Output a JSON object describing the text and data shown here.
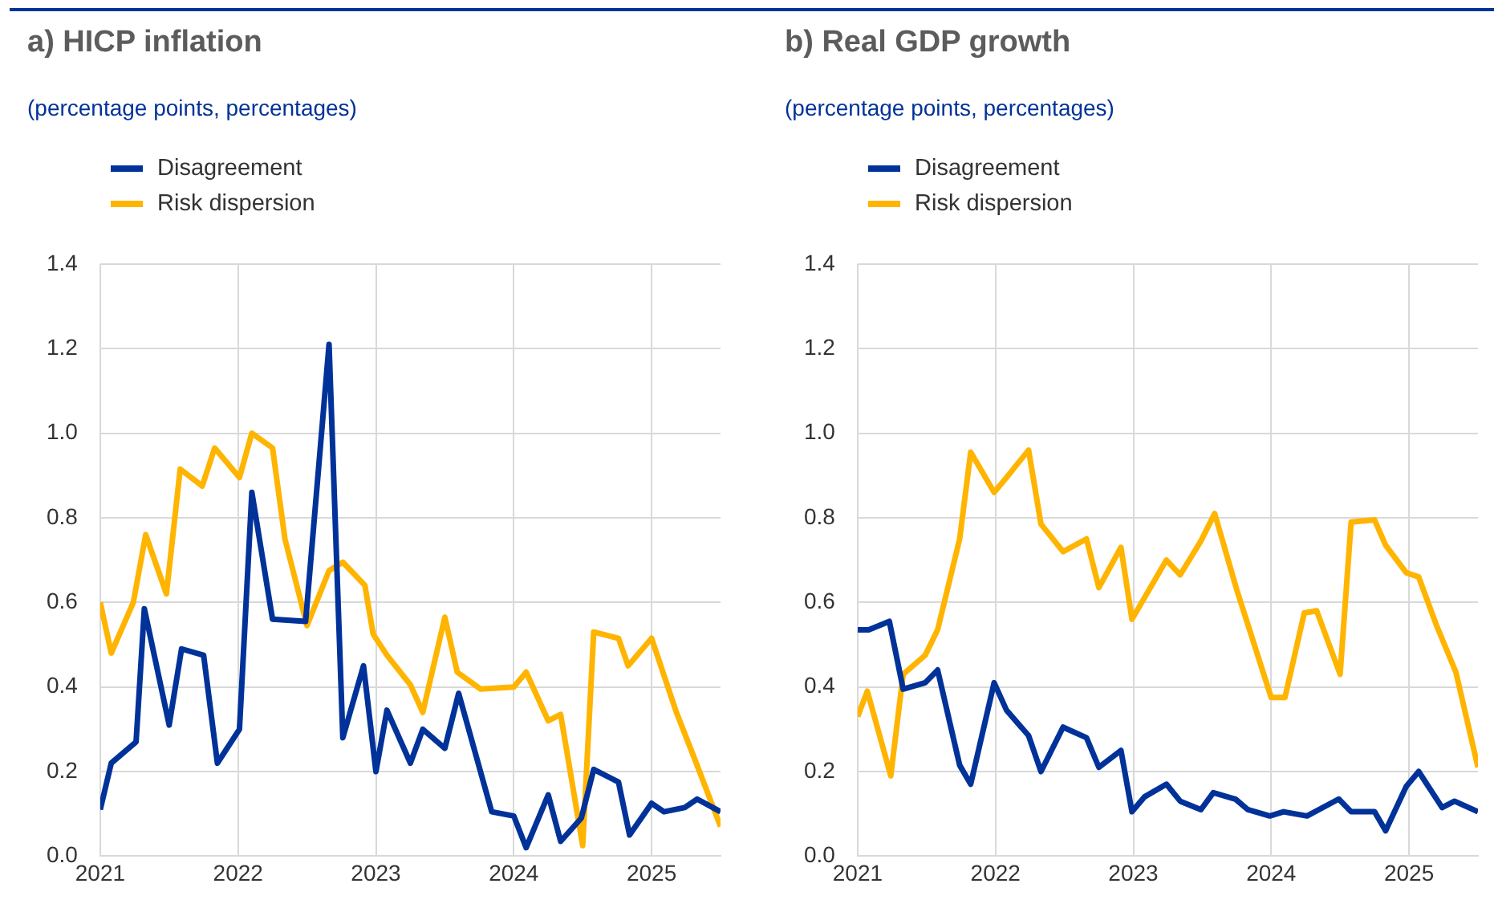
{
  "chart_data": [
    {
      "type": "line",
      "title": "a) HICP inflation",
      "subtitle": "(percentage points, percentages)",
      "legend": "top left",
      "grid": true,
      "xlim": [
        2021,
        2025.5
      ],
      "xticks": [
        2021,
        2022,
        2023,
        2024,
        2025
      ],
      "ylim": [
        0,
        1.4
      ],
      "yticks": [
        {
          "value": 0,
          "label": "0.0"
        },
        {
          "value": 0.2,
          "label": "0.2"
        },
        {
          "value": 0.4,
          "label": "0.4"
        },
        {
          "value": 0.6,
          "label": "0.6"
        },
        {
          "value": 0.8,
          "label": "0.8"
        },
        {
          "value": 1,
          "label": "1.0"
        },
        {
          "value": 1.2,
          "label": "1.2"
        },
        {
          "value": 1.4,
          "label": "1.4"
        }
      ],
      "series": [
        {
          "name": "Disagreement",
          "color": "#003299",
          "x": [
            2021.0,
            2021.08,
            2021.26,
            2021.32,
            2021.5,
            2021.59,
            2021.75,
            2021.85,
            2022.01,
            2022.1,
            2022.25,
            2022.49,
            2022.66,
            2022.76,
            2022.91,
            2023.0,
            2023.08,
            2023.25,
            2023.34,
            2023.5,
            2023.6,
            2023.84,
            2024.0,
            2024.09,
            2024.25,
            2024.34,
            2024.49,
            2024.58,
            2024.76,
            2024.84,
            2025.0,
            2025.09,
            2025.24,
            2025.33,
            2025.5
          ],
          "values": [
            0.11,
            0.22,
            0.27,
            0.585,
            0.31,
            0.49,
            0.475,
            0.22,
            0.3,
            0.86,
            0.56,
            0.555,
            1.21,
            0.28,
            0.45,
            0.2,
            0.345,
            0.22,
            0.3,
            0.255,
            0.385,
            0.105,
            0.095,
            0.02,
            0.145,
            0.035,
            0.09,
            0.205,
            0.175,
            0.05,
            0.125,
            0.105,
            0.115,
            0.135,
            0.105
          ]
        },
        {
          "name": "Risk dispersion",
          "color": "#ffb400",
          "x": [
            2021.0,
            2021.08,
            2021.24,
            2021.33,
            2021.48,
            2021.58,
            2021.74,
            2021.83,
            2022.01,
            2022.1,
            2022.25,
            2022.34,
            2022.5,
            2022.66,
            2022.76,
            2022.92,
            2022.98,
            2023.08,
            2023.25,
            2023.34,
            2023.5,
            2023.59,
            2023.76,
            2024.0,
            2024.09,
            2024.25,
            2024.34,
            2024.5,
            2024.58,
            2024.76,
            2024.83,
            2025.0,
            2025.18,
            2025.33,
            2025.5
          ],
          "values": [
            0.6,
            0.48,
            0.6,
            0.76,
            0.62,
            0.915,
            0.875,
            0.965,
            0.895,
            1.0,
            0.965,
            0.75,
            0.545,
            0.675,
            0.695,
            0.64,
            0.525,
            0.475,
            0.405,
            0.34,
            0.565,
            0.435,
            0.395,
            0.4,
            0.435,
            0.32,
            0.335,
            0.025,
            0.53,
            0.515,
            0.45,
            0.515,
            0.34,
            0.215,
            0.07
          ]
        }
      ]
    },
    {
      "type": "line",
      "title": "b) Real GDP growth",
      "subtitle": "(percentage points, percentages)",
      "legend": "top left",
      "grid": true,
      "xlim": [
        2021,
        2025.5
      ],
      "xticks": [
        2021,
        2022,
        2023,
        2024,
        2025
      ],
      "ylim": [
        0,
        1.4
      ],
      "yticks": [
        {
          "value": 0,
          "label": "0.0"
        },
        {
          "value": 0.2,
          "label": "0.2"
        },
        {
          "value": 0.4,
          "label": "0.4"
        },
        {
          "value": 0.6,
          "label": "0.6"
        },
        {
          "value": 0.8,
          "label": "0.8"
        },
        {
          "value": 1,
          "label": "1.0"
        },
        {
          "value": 1.2,
          "label": "1.2"
        },
        {
          "value": 1.4,
          "label": "1.4"
        }
      ],
      "series": [
        {
          "name": "Disagreement",
          "color": "#003299",
          "x": [
            2021.0,
            2021.08,
            2021.23,
            2021.33,
            2021.49,
            2021.58,
            2021.74,
            2021.82,
            2021.99,
            2022.08,
            2022.24,
            2022.33,
            2022.49,
            2022.66,
            2022.75,
            2022.91,
            2022.99,
            2023.08,
            2023.24,
            2023.34,
            2023.49,
            2023.58,
            2023.74,
            2023.83,
            2023.99,
            2024.09,
            2024.26,
            2024.49,
            2024.58,
            2024.75,
            2024.83,
            2024.98,
            2025.07,
            2025.24,
            2025.33,
            2025.5
          ],
          "values": [
            0.535,
            0.535,
            0.555,
            0.395,
            0.41,
            0.44,
            0.215,
            0.17,
            0.41,
            0.345,
            0.285,
            0.2,
            0.305,
            0.28,
            0.21,
            0.25,
            0.105,
            0.14,
            0.17,
            0.13,
            0.11,
            0.15,
            0.135,
            0.11,
            0.095,
            0.105,
            0.095,
            0.135,
            0.105,
            0.105,
            0.06,
            0.165,
            0.2,
            0.115,
            0.13,
            0.105
          ]
        },
        {
          "name": "Risk dispersion",
          "color": "#ffb400",
          "x": [
            2021.0,
            2021.07,
            2021.24,
            2021.33,
            2021.49,
            2021.58,
            2021.74,
            2021.82,
            2021.99,
            2022.08,
            2022.24,
            2022.33,
            2022.49,
            2022.66,
            2022.75,
            2022.91,
            2022.99,
            2023.24,
            2023.34,
            2023.49,
            2023.59,
            2023.75,
            2024.0,
            2024.1,
            2024.24,
            2024.33,
            2024.5,
            2024.58,
            2024.75,
            2024.83,
            2024.98,
            2025.07,
            2025.2,
            2025.34,
            2025.5
          ],
          "values": [
            0.33,
            0.39,
            0.19,
            0.43,
            0.475,
            0.535,
            0.75,
            0.955,
            0.86,
            0.895,
            0.96,
            0.785,
            0.72,
            0.75,
            0.635,
            0.73,
            0.56,
            0.7,
            0.665,
            0.745,
            0.81,
            0.63,
            0.375,
            0.375,
            0.575,
            0.58,
            0.43,
            0.79,
            0.795,
            0.735,
            0.67,
            0.66,
            0.545,
            0.435,
            0.21
          ]
        }
      ]
    }
  ]
}
